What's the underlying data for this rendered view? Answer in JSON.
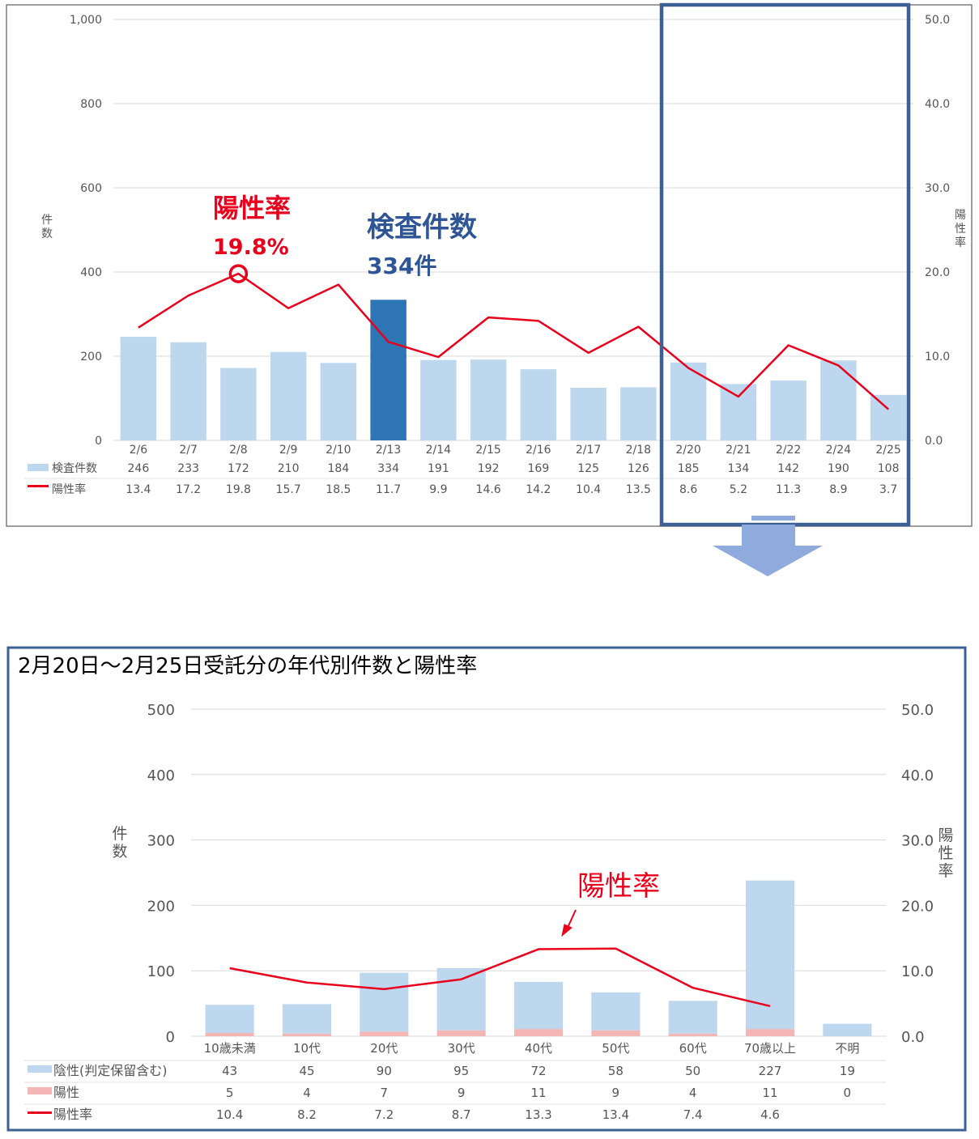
{
  "colors": {
    "bar": "#bdd7ee",
    "bar_highlight": "#2e75b6",
    "positive": "#f4b5b5",
    "line": "#e8001c",
    "annotation_red": "#e8001c",
    "annotation_blue": "#2f5597",
    "box": "#3c5f94",
    "arrow": "#8faadc"
  },
  "chart_data": [
    {
      "type": "bar",
      "title": "",
      "left_axis": {
        "label": "件数",
        "ylim": [
          0,
          1000
        ],
        "ticks": [
          "0",
          "200",
          "400",
          "600",
          "800",
          "1,000"
        ]
      },
      "right_axis": {
        "label": "陽性率",
        "ylim": [
          0,
          50
        ],
        "ticks": [
          "0.0",
          "10.0",
          "20.0",
          "30.0",
          "40.0",
          "50.0"
        ]
      },
      "categories": [
        "2/6",
        "2/7",
        "2/8",
        "2/9",
        "2/10",
        "2/13",
        "2/14",
        "2/15",
        "2/16",
        "2/17",
        "2/18",
        "2/20",
        "2/21",
        "2/22",
        "2/24",
        "2/25"
      ],
      "series": [
        {
          "name": "検査件数",
          "type": "bar",
          "axis": "left",
          "values": [
            246,
            233,
            172,
            210,
            184,
            334,
            191,
            192,
            169,
            125,
            126,
            185,
            134,
            142,
            190,
            108
          ],
          "labels": [
            "246",
            "233",
            "172",
            "210",
            "184",
            "334",
            "191",
            "192",
            "169",
            "125",
            "126",
            "185",
            "134",
            "142",
            "190",
            "108"
          ]
        },
        {
          "name": "陽性率",
          "type": "line",
          "axis": "right",
          "values": [
            13.4,
            17.2,
            19.8,
            15.7,
            18.5,
            11.7,
            9.9,
            14.6,
            14.2,
            10.4,
            13.5,
            8.6,
            5.2,
            11.3,
            8.9,
            3.7
          ],
          "labels": [
            "13.4",
            "17.2",
            "19.8",
            "15.7",
            "18.5",
            "11.7",
            "9.9",
            "14.6",
            "14.2",
            "10.4",
            "13.5",
            "8.6",
            "5.2",
            "11.3",
            "8.9",
            "3.7"
          ]
        }
      ],
      "highlight_index": 5,
      "annotations": {
        "rate_title": "陽性率",
        "rate_value": "19.8%",
        "count_title": "検査件数",
        "count_value": "334件"
      },
      "grid": true,
      "legend": "data-table"
    },
    {
      "type": "bar",
      "title": "2月20日～2月25日受託分の年代別件数と陽性率",
      "left_axis": {
        "label": "件数",
        "ylim": [
          0,
          500
        ],
        "ticks": [
          "0",
          "100",
          "200",
          "300",
          "400",
          "500"
        ]
      },
      "right_axis": {
        "label": "陽性率",
        "ylim": [
          0,
          50
        ],
        "ticks": [
          "0.0",
          "10.0",
          "20.0",
          "30.0",
          "40.0",
          "50.0"
        ]
      },
      "categories": [
        "10歳未満",
        "10代",
        "20代",
        "30代",
        "40代",
        "50代",
        "60代",
        "70歳以上",
        "不明"
      ],
      "series": [
        {
          "name": "陰性(判定保留含む)",
          "type": "stacked-bar",
          "axis": "left",
          "values": [
            43,
            45,
            90,
            95,
            72,
            58,
            50,
            227,
            19
          ],
          "labels": [
            "43",
            "45",
            "90",
            "95",
            "72",
            "58",
            "50",
            "227",
            "19"
          ]
        },
        {
          "name": "陽性",
          "type": "stacked-bar",
          "axis": "left",
          "values": [
            5,
            4,
            7,
            9,
            11,
            9,
            4,
            11,
            0
          ],
          "labels": [
            "5",
            "4",
            "7",
            "9",
            "11",
            "9",
            "4",
            "11",
            "0"
          ]
        },
        {
          "name": "陽性率",
          "type": "line",
          "axis": "right",
          "values": [
            10.4,
            8.2,
            7.2,
            8.7,
            13.3,
            13.4,
            7.4,
            4.6,
            null
          ],
          "labels": [
            "10.4",
            "8.2",
            "7.2",
            "8.7",
            "13.3",
            "13.4",
            "7.4",
            "4.6",
            ""
          ]
        }
      ],
      "annotations": {
        "rate_title": "陽性率"
      },
      "grid": true,
      "legend": "data-table"
    }
  ]
}
